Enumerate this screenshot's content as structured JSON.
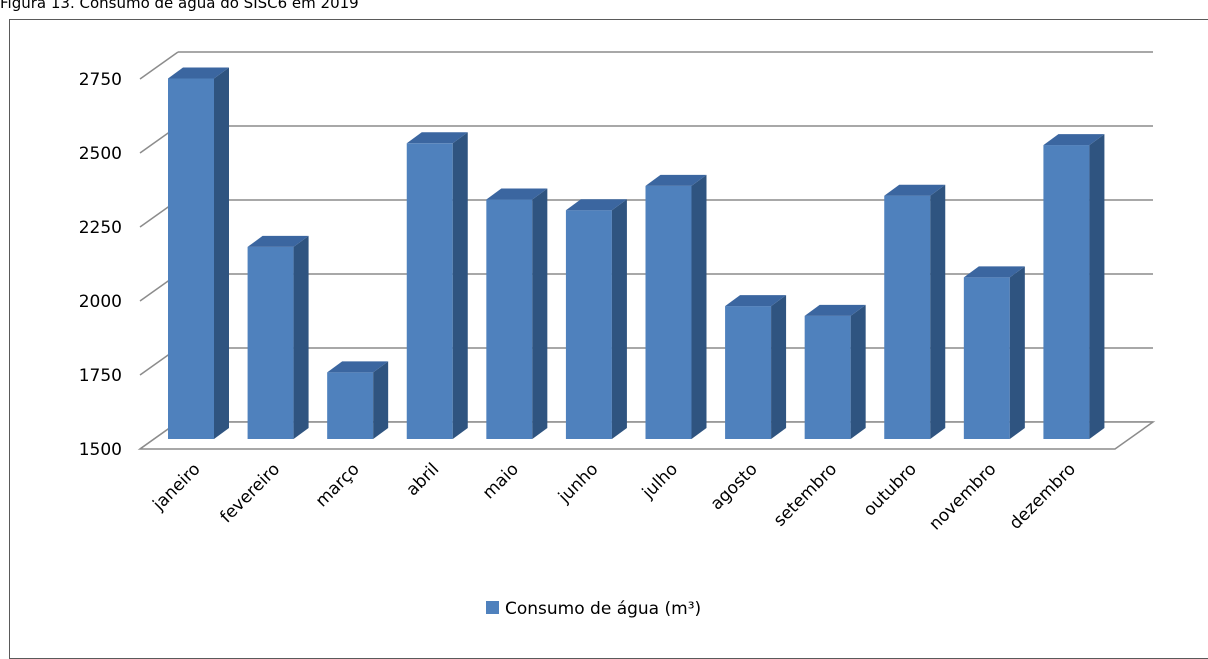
{
  "caption": "Figura 13. Consumo de água do SISC6 em 2019",
  "chart_data": {
    "type": "bar",
    "categories": [
      "janeiro",
      "fevereiro",
      "março",
      "abril",
      "maio",
      "junho",
      "julho",
      "agosto",
      "setembro",
      "outubro",
      "novembro",
      "dezembro"
    ],
    "series": [
      {
        "name": "Consumo de água (m³)",
        "values": [
          2745,
          2176,
          1752,
          2526,
          2336,
          2300,
          2382,
          1976,
          1943,
          2349,
          2073,
          2520
        ]
      }
    ],
    "ylim": [
      1500,
      2750
    ],
    "yticks": [
      1500,
      1750,
      2000,
      2250,
      2500,
      2750
    ],
    "grid": true,
    "legend": "bottom",
    "colors": {
      "front": "#4f81bd",
      "side": "#2f5480",
      "top": "#3b66a0"
    }
  }
}
